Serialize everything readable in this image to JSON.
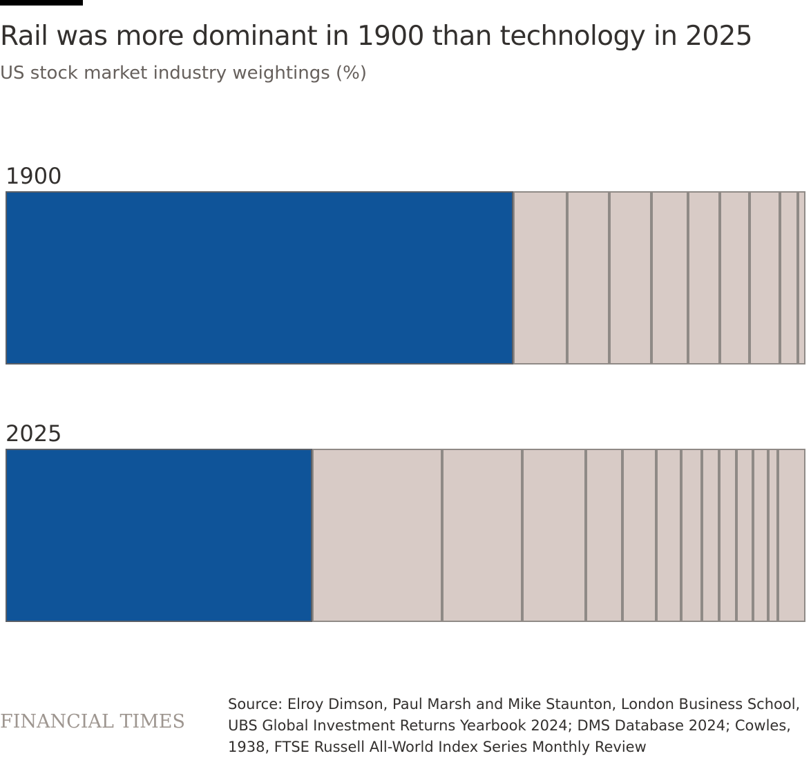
{
  "chart_data": {
    "type": "stacked-bar-treemap",
    "title": "Rail was more dominant in 1900 than technology in 2025",
    "subtitle": "US stock market industry weightings (%)",
    "highlight_color": "#0f5499",
    "other_color": "#d8cbc6",
    "border_color": "#8f8a86",
    "bars": [
      {
        "label": "1900",
        "highlight_index": 0,
        "values": [
          62.8,
          6.7,
          5.2,
          5.2,
          4.6,
          3.9,
          3.7,
          3.7,
          2.3,
          0.9
        ]
      },
      {
        "label": "2025",
        "highlight_index": 0,
        "values": [
          37.6,
          15.9,
          9.8,
          7.8,
          4.5,
          4.1,
          3.1,
          2.5,
          2.1,
          2.1,
          2.1,
          1.8,
          1.2,
          3.4
        ]
      }
    ]
  },
  "footer": {
    "logo": "FINANCIAL TIMES",
    "source_lines": [
      "Source: Elroy Dimson, Paul Marsh and Mike Staunton, London Business School,",
      "UBS Global Investment Returns Yearbook 2024; DMS Database 2024; Cowles,",
      "1938, FTSE Russell All-World Index Series Monthly Review"
    ]
  }
}
